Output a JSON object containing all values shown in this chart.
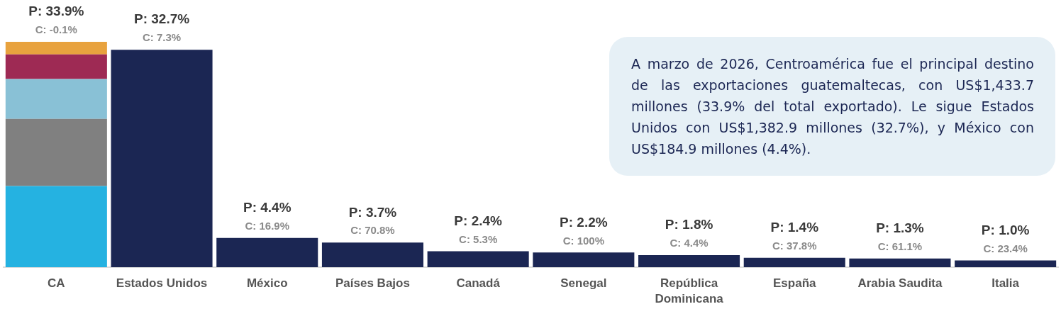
{
  "chart_data": {
    "type": "bar",
    "stacked": true,
    "tick_labels": "x",
    "categories": [
      "CA",
      "Estados Unidos",
      "México",
      "Países Bajos",
      "Canadá",
      "Senegal",
      "República Dominicana",
      "España",
      "Arabia Saudita",
      "Italia"
    ],
    "series": [
      {
        "color": "#25b2e1",
        "values": [
          12.2,
          null,
          null,
          null,
          null,
          null,
          null,
          null,
          null,
          null
        ]
      },
      {
        "color": "#808080",
        "values": [
          10.1,
          null,
          null,
          null,
          null,
          null,
          null,
          null,
          null,
          null
        ]
      },
      {
        "color": "#89c1d6",
        "values": [
          6.0,
          null,
          null,
          null,
          null,
          null,
          null,
          null,
          null,
          null
        ]
      },
      {
        "color": "#9e2a54",
        "values": [
          3.7,
          null,
          null,
          null,
          null,
          null,
          null,
          null,
          null,
          null
        ]
      },
      {
        "color": "#e8a23e",
        "values": [
          1.9,
          null,
          null,
          null,
          null,
          null,
          null,
          null,
          null,
          null
        ]
      },
      {
        "color": "#1b2653",
        "values": [
          null,
          32.7,
          4.4,
          3.7,
          2.4,
          2.2,
          1.8,
          1.4,
          1.3,
          1.0
        ],
        "value_labels": [
          null,
          "P: 32.7%",
          "P: 4.4%",
          "P: 3.7%",
          "P: 2.4%",
          "P: 2.2%",
          "P: 1.8%",
          "P: 1.4%",
          "P: 1.3%",
          "P: 1.0%"
        ]
      }
    ],
    "totals": [
      "P: 33.9%",
      null,
      null,
      null,
      null,
      null,
      null,
      null,
      null,
      null
    ],
    "annotations": [
      {
        "text": "C: -0.1%",
        "x": "CA",
        "y": 33.9
      },
      {
        "text": "C: 7.3%",
        "x": "Estados Unidos",
        "y": 32.7
      },
      {
        "text": "C: 16.9%",
        "x": "México",
        "y": 4.4
      },
      {
        "text": "C: 70.8%",
        "x": "Países Bajos",
        "y": 3.7
      },
      {
        "text": "C: 5.3%",
        "x": "Canadá",
        "y": 2.4
      },
      {
        "text": "C: 100%",
        "x": "Senegal",
        "y": 2.2
      },
      {
        "text": "C: 4.4%",
        "x": "República Dominicana",
        "y": 1.8
      },
      {
        "text": "C: 37.8%",
        "x": "España",
        "y": 1.4
      },
      {
        "text": "C: 61.1%",
        "x": "Arabia Saudita",
        "y": 1.3
      },
      {
        "text": "C: 23.4%",
        "x": "Italia",
        "y": 1.0
      },
      "A marzo de 2026, Centroamérica fue el principal destino de las exportaciones guatemaltecas, con US$1,433.7 millones (33.9% del total exportado). Le sigue Estados Unidos con US$1,382.9 millones (32.7%), y México con US$184.9 millones (4.4%)."
    ]
  }
}
